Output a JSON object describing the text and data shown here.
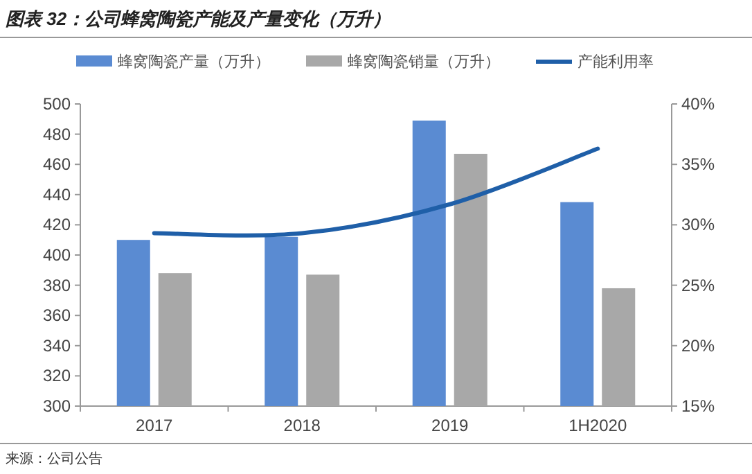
{
  "chart_data": {
    "type": "bar",
    "title": "图表 32：公司蜂窝陶瓷产能及产量变化（万升）",
    "categories": [
      "2017",
      "2018",
      "2019",
      "1H2020"
    ],
    "series": [
      {
        "name": "蜂窝陶瓷产量（万升）",
        "color": "#5a8bd2",
        "values": [
          410,
          412,
          489,
          435
        ]
      },
      {
        "name": "蜂窝陶瓷销量（万升）",
        "color": "#a8a8a8",
        "values": [
          388,
          387,
          467,
          378
        ]
      },
      {
        "name": "产能利用率",
        "type": "line",
        "axis": "y2",
        "color": "#1f5fa8",
        "line_style": "solid",
        "marker": "none",
        "values": [
          29.3,
          29.3,
          31.7,
          36.3
        ]
      }
    ],
    "ylim": [
      300,
      500
    ],
    "yticks": [
      300,
      320,
      340,
      360,
      380,
      400,
      420,
      440,
      460,
      480,
      500
    ],
    "y2lim": [
      15,
      40
    ],
    "y2ticks": [
      {
        "value": 15,
        "label": "15%"
      },
      {
        "value": 20,
        "label": "20%"
      },
      {
        "value": 25,
        "label": "25%"
      },
      {
        "value": 30,
        "label": "30%"
      },
      {
        "value": 35,
        "label": "35%"
      },
      {
        "value": 40,
        "label": "40%"
      }
    ],
    "legend": "top",
    "grid": false,
    "annotations": [
      "来源：公司公告"
    ]
  }
}
